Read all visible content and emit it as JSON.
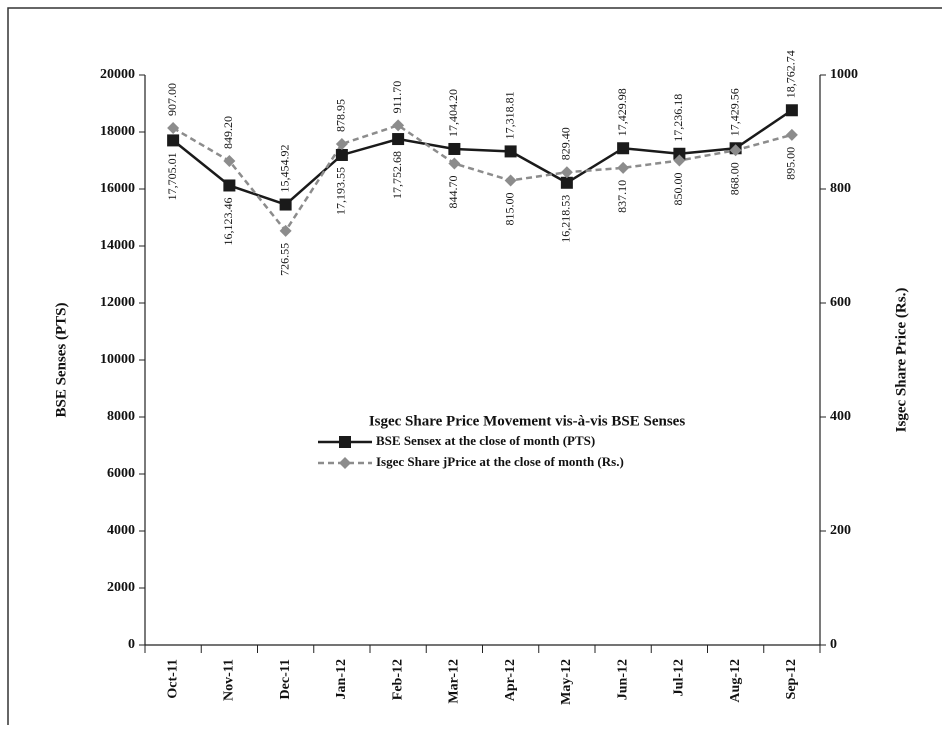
{
  "chart_data": {
    "type": "line",
    "title": "Isgec Share Price Movement vis-à-vis BSE Senses",
    "y_label": "BSE Senses (PTS)",
    "y2_label": "Isgec Share Price (Rs.)",
    "categories": [
      "Oct-11",
      "Nov-11",
      "Dec-11",
      "Jan-12",
      "Feb-12",
      "Mar-12",
      "Apr-12",
      "May-12",
      "Jun-12",
      "Jul-12",
      "Aug-12",
      "Sep-12"
    ],
    "series": [
      {
        "name": "BSE Sensex at the close of month (PTS)",
        "color": "#1a1a1a",
        "marker": "square",
        "dashed": false,
        "values": [
          17705.01,
          16123.46,
          15454.92,
          17193.55,
          17752.68,
          17404.2,
          17318.81,
          16218.53,
          17429.98,
          17236.18,
          17429.56,
          18762.74
        ],
        "value_labels": [
          "17,705.01",
          "16,123.46",
          "15,454.92",
          "17,193.55",
          "17,752.68",
          "17,404.20",
          "17,318.81",
          "16,218.53",
          "17,429.98",
          "17,236.18",
          "17,429.56",
          "18,762.74"
        ]
      },
      {
        "name": "Isgec Share jPrice at the close of month (Rs.)",
        "color": "#8c8c8c",
        "marker": "diamond",
        "dashed": true,
        "axis": "y2",
        "values": [
          907.0,
          849.2,
          726.55,
          878.95,
          911.7,
          844.7,
          815.0,
          829.4,
          837.1,
          850.0,
          868.0,
          895.0
        ],
        "value_labels": [
          "907.00",
          "849.20",
          "726.55",
          "878.95",
          "911.70",
          "844.70",
          "815.00",
          "829.40",
          "837.10",
          "850.00",
          "868.00",
          "895.00"
        ]
      }
    ],
    "ylim": [
      0,
      20000
    ],
    "yticks": [
      0,
      2000,
      4000,
      6000,
      8000,
      10000,
      12000,
      14000,
      16000,
      18000,
      20000
    ],
    "y2lim": [
      0,
      1000
    ],
    "y2ticks": [
      0,
      200,
      400,
      600,
      800,
      1000
    ]
  }
}
